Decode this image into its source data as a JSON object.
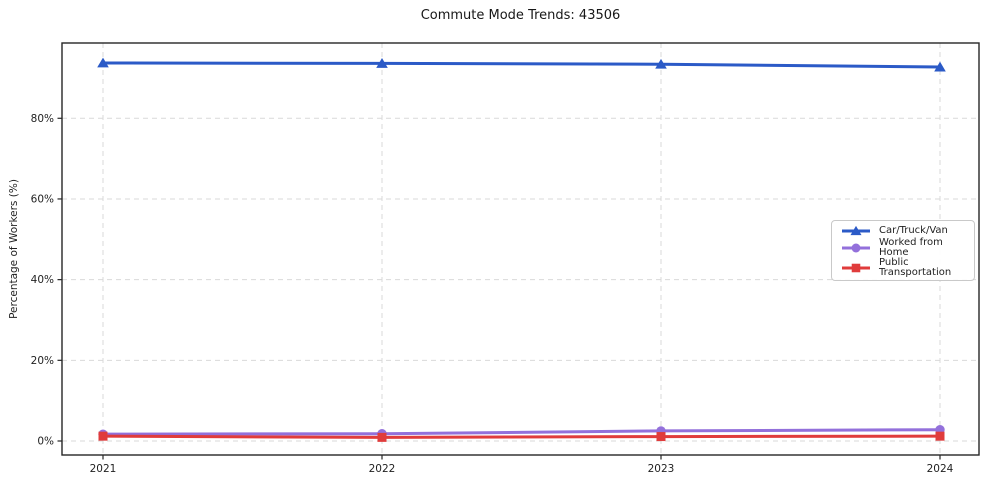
{
  "chart_data": {
    "type": "line",
    "title": "Commute Mode Trends: 43506",
    "xlabel": "",
    "ylabel": "Percentage of Workers (%)",
    "x": [
      "2021",
      "2022",
      "2023",
      "2024"
    ],
    "x_tick_labels": [
      "2021",
      "2022",
      "2023",
      "2024"
    ],
    "y_ticks": [
      0,
      20,
      40,
      60,
      80
    ],
    "y_tick_labels": [
      "0%",
      "20%",
      "40%",
      "60%",
      "80%"
    ],
    "ylim": [
      -3.5,
      98.7
    ],
    "grid": true,
    "legend_position": "center right",
    "series": [
      {
        "name": "Car/Truck/Van",
        "marker": "triangle",
        "color": "#2b5ac7",
        "values": [
          93.7,
          93.6,
          93.4,
          92.7
        ]
      },
      {
        "name": "Worked from Home",
        "marker": "circle",
        "color": "#9370db",
        "values": [
          1.7,
          1.8,
          2.5,
          2.8
        ]
      },
      {
        "name": "Public Transportation",
        "marker": "square",
        "color": "#e03c3c",
        "values": [
          1.2,
          0.9,
          1.1,
          1.2
        ]
      }
    ],
    "colors": {
      "background": "#ffffff",
      "grid": "#d9d9d9",
      "axis": "#262626",
      "text": "#1f1f1f",
      "legend_border": "#c9c9c9"
    }
  }
}
